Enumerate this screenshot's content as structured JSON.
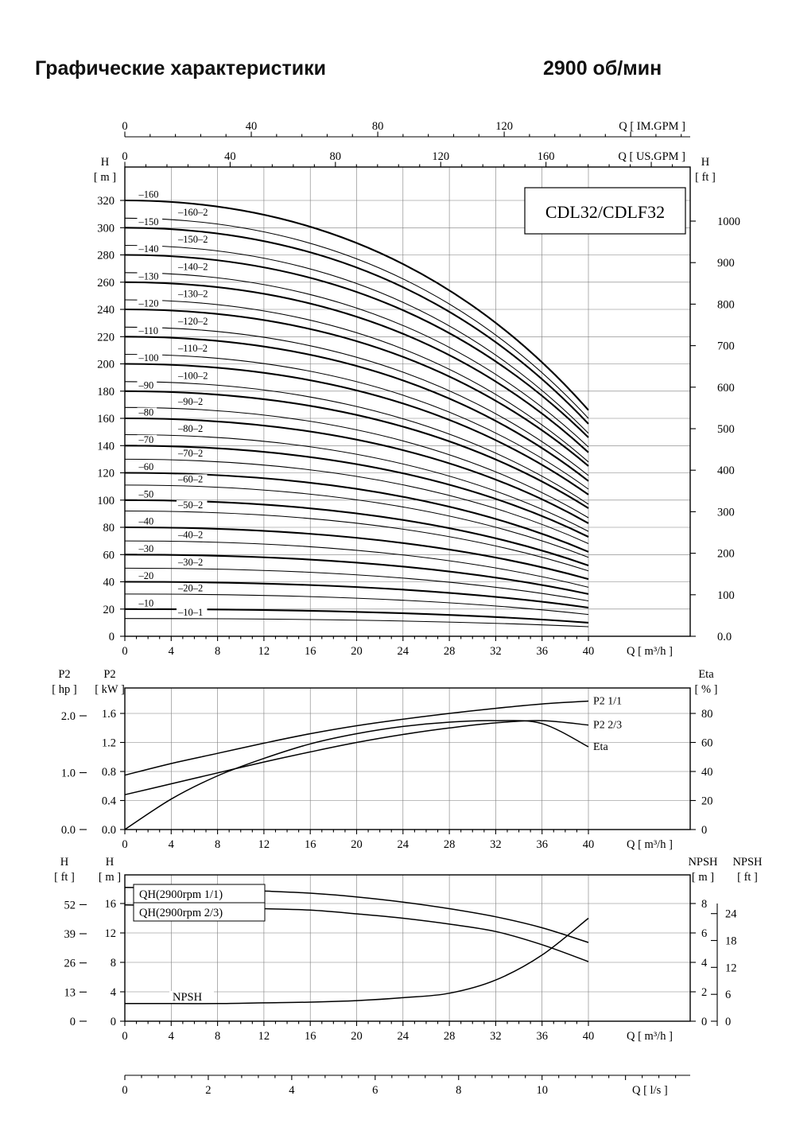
{
  "header": {
    "title": "Графические характеристики",
    "rpm": "2900 об/мин"
  },
  "chart_data": [
    {
      "id": "head-capacity",
      "type": "line",
      "title": "CDL32/CDLF32",
      "x_axis": {
        "label": "Q [ m³/h ]",
        "min": 0,
        "max": 40,
        "major_ticks": [
          0,
          4,
          8,
          12,
          16,
          20,
          24,
          28,
          32,
          36,
          40
        ]
      },
      "x_top_axes": [
        {
          "label": "Q [ IM.GPM ]",
          "major_ticks": [
            0,
            40,
            80,
            120
          ],
          "minor_step": 8,
          "major_step": 40,
          "gpm_per_m3h": 3.666
        },
        {
          "label": "Q [ US.GPM ]",
          "major_ticks": [
            0,
            40,
            80,
            120,
            160
          ],
          "minor_step": 8,
          "major_step": 40,
          "gpm_per_m3h": 4.403
        }
      ],
      "y_left": {
        "title": [
          "H",
          "[ m ]"
        ],
        "min": 0,
        "max": 320,
        "ticks": [
          0,
          20,
          40,
          60,
          80,
          100,
          120,
          140,
          160,
          180,
          200,
          220,
          240,
          260,
          280,
          300,
          320
        ]
      },
      "y_right": {
        "title": [
          "H",
          "[ ft ]"
        ],
        "labels": [
          "0.0",
          "100",
          "200",
          "300",
          "400",
          "500",
          "600",
          "700",
          "800",
          "900",
          "1000"
        ],
        "values": [
          0,
          100,
          200,
          300,
          400,
          500,
          600,
          700,
          800,
          900,
          1000
        ]
      },
      "series": [
        {
          "name": "–160",
          "weight": "bold",
          "shutoff_m": 320,
          "h40_m": 166
        },
        {
          "name": "–160–2",
          "weight": "thin",
          "shutoff_m": 307,
          "h40_m": 160
        },
        {
          "name": "–150",
          "weight": "bold",
          "shutoff_m": 300,
          "h40_m": 156
        },
        {
          "name": "–150–2",
          "weight": "thin",
          "shutoff_m": 287,
          "h40_m": 149
        },
        {
          "name": "–140",
          "weight": "bold",
          "shutoff_m": 280,
          "h40_m": 146
        },
        {
          "name": "–140–2",
          "weight": "thin",
          "shutoff_m": 267,
          "h40_m": 139
        },
        {
          "name": "–130",
          "weight": "bold",
          "shutoff_m": 260,
          "h40_m": 135
        },
        {
          "name": "–130–2",
          "weight": "thin",
          "shutoff_m": 247,
          "h40_m": 128
        },
        {
          "name": "–120",
          "weight": "bold",
          "shutoff_m": 240,
          "h40_m": 125
        },
        {
          "name": "–120–2",
          "weight": "thin",
          "shutoff_m": 227,
          "h40_m": 118
        },
        {
          "name": "–110",
          "weight": "bold",
          "shutoff_m": 220,
          "h40_m": 114
        },
        {
          "name": "–110–2",
          "weight": "thin",
          "shutoff_m": 207,
          "h40_m": 108
        },
        {
          "name": "–100",
          "weight": "bold",
          "shutoff_m": 200,
          "h40_m": 104
        },
        {
          "name": "–100–2",
          "weight": "thin",
          "shutoff_m": 187,
          "h40_m": 97
        },
        {
          "name": "–90",
          "weight": "bold",
          "shutoff_m": 180,
          "h40_m": 94
        },
        {
          "name": "–90–2",
          "weight": "thin",
          "shutoff_m": 168,
          "h40_m": 87
        },
        {
          "name": "–80",
          "weight": "bold",
          "shutoff_m": 160,
          "h40_m": 83
        },
        {
          "name": "–80–2",
          "weight": "thin",
          "shutoff_m": 148,
          "h40_m": 77
        },
        {
          "name": "–70",
          "weight": "bold",
          "shutoff_m": 140,
          "h40_m": 73
        },
        {
          "name": "–70–2",
          "weight": "thin",
          "shutoff_m": 130,
          "h40_m": 68
        },
        {
          "name": "–60",
          "weight": "bold",
          "shutoff_m": 120,
          "h40_m": 62
        },
        {
          "name": "–60–2",
          "weight": "thin",
          "shutoff_m": 111,
          "h40_m": 58
        },
        {
          "name": "–50",
          "weight": "bold",
          "shutoff_m": 100,
          "h40_m": 52
        },
        {
          "name": "–50–2",
          "weight": "thin",
          "shutoff_m": 92,
          "h40_m": 48
        },
        {
          "name": "–40",
          "weight": "bold",
          "shutoff_m": 80,
          "h40_m": 42
        },
        {
          "name": "–40–2",
          "weight": "thin",
          "shutoff_m": 70,
          "h40_m": 36
        },
        {
          "name": "–30",
          "weight": "bold",
          "shutoff_m": 60,
          "h40_m": 31
        },
        {
          "name": "–30–2",
          "weight": "thin",
          "shutoff_m": 50,
          "h40_m": 26
        },
        {
          "name": "–20",
          "weight": "bold",
          "shutoff_m": 40,
          "h40_m": 21
        },
        {
          "name": "–20–2",
          "weight": "thin",
          "shutoff_m": 31,
          "h40_m": 16
        },
        {
          "name": "–10",
          "weight": "bold",
          "shutoff_m": 20,
          "h40_m": 10
        },
        {
          "name": "–10–1",
          "weight": "thin",
          "shutoff_m": 13,
          "h40_m": 7
        }
      ]
    },
    {
      "id": "power-efficiency",
      "type": "line",
      "x_axis": {
        "label": "Q [ m³/h ]",
        "min": 0,
        "max": 40,
        "major_ticks": [
          0,
          4,
          8,
          12,
          16,
          20,
          24,
          28,
          32,
          36,
          40
        ]
      },
      "x": [
        0,
        4,
        8,
        12,
        16,
        20,
        24,
        28,
        32,
        36,
        40
      ],
      "y_left_outer": {
        "title": [
          "P2",
          "[ hp ]"
        ],
        "labels": [
          "0.0",
          "1.0",
          "2.0"
        ],
        "values": [
          0,
          1,
          2
        ]
      },
      "y_left_inner": {
        "title": [
          "P2",
          "[ kW ]"
        ],
        "labels": [
          "0.0",
          "0.4",
          "0.8",
          "1.2",
          "1.6"
        ],
        "values": [
          0,
          0.4,
          0.8,
          1.2,
          1.6
        ]
      },
      "y_right": {
        "title": [
          "Eta",
          "[ % ]"
        ],
        "values": [
          0,
          20,
          40,
          60,
          80
        ]
      },
      "series": [
        {
          "name": "P2  1/1",
          "scale": "kw",
          "values": [
            0.75,
            0.91,
            1.05,
            1.19,
            1.32,
            1.43,
            1.52,
            1.6,
            1.67,
            1.73,
            1.77
          ]
        },
        {
          "name": "P2  2/3",
          "scale": "kw",
          "values": [
            0.48,
            0.63,
            0.78,
            0.93,
            1.07,
            1.2,
            1.31,
            1.4,
            1.47,
            1.5,
            1.44
          ]
        },
        {
          "name": "Eta",
          "scale": "eta",
          "values": [
            0,
            21,
            37,
            49,
            59,
            66,
            71,
            74,
            75,
            73,
            57
          ]
        }
      ]
    },
    {
      "id": "qh-npsh",
      "type": "line",
      "x_axis": {
        "label": "Q [ m³/h ]",
        "min": 0,
        "max": 40,
        "major_ticks": [
          0,
          4,
          8,
          12,
          16,
          20,
          24,
          28,
          32,
          36,
          40
        ]
      },
      "x_bottom_axis": {
        "label": "Q [ l/s ]",
        "major_ticks": [
          0,
          2,
          4,
          6,
          8,
          10
        ]
      },
      "x": [
        0,
        4,
        8,
        12,
        16,
        20,
        24,
        28,
        32,
        36,
        40
      ],
      "y_left_outer": {
        "title": [
          "H",
          "[ ft ]"
        ],
        "values": [
          0,
          13,
          26,
          39,
          52
        ]
      },
      "y_left_inner": {
        "title": [
          "H",
          "[ m ]"
        ],
        "values": [
          0,
          4,
          8,
          12,
          16
        ]
      },
      "y_right_inner": {
        "title": [
          "NPSH",
          "[ m ]"
        ],
        "values": [
          0,
          2,
          4,
          6,
          8
        ]
      },
      "y_right_outer": {
        "title": [
          "NPSH",
          "[ ft ]"
        ],
        "values": [
          0,
          6,
          12,
          18,
          24
        ]
      },
      "series": [
        {
          "name": "QH(2900rpm 1/1)",
          "scale": "m",
          "boxed_label": true,
          "values": [
            18.2,
            18.1,
            17.9,
            17.7,
            17.4,
            16.9,
            16.2,
            15.3,
            14.2,
            12.7,
            10.7
          ]
        },
        {
          "name": "QH(2900rpm 2/3)",
          "scale": "m",
          "boxed_label": true,
          "values": [
            15.8,
            15.7,
            15.5,
            15.3,
            15.1,
            14.6,
            14.0,
            13.2,
            12.2,
            10.4,
            8.1
          ]
        },
        {
          "name": "NPSH",
          "scale": "npsh",
          "values": [
            1.2,
            1.2,
            1.2,
            1.25,
            1.3,
            1.4,
            1.6,
            1.9,
            2.8,
            4.5,
            7.0
          ]
        }
      ]
    }
  ]
}
